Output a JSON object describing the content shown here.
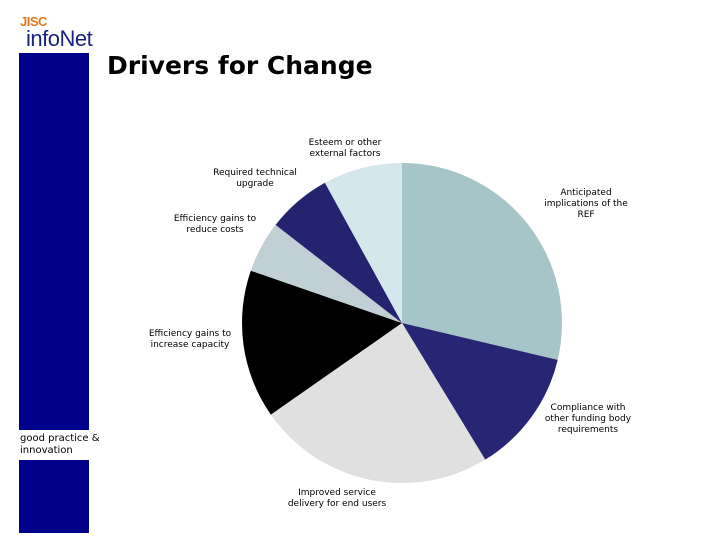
{
  "header": {
    "logo_top": "JISC",
    "logo_main": "infoNet",
    "title": "Drivers for Change"
  },
  "sidebar": {
    "label": [
      "good practice &",
      "innovation"
    ],
    "color": "#00008b"
  },
  "chart_data": {
    "type": "pie",
    "title": "Drivers for Change",
    "slices": [
      {
        "label": [
          "Anticipated",
          "implications of the",
          "REF"
        ],
        "value": 28.7,
        "color": "#a5c5c8"
      },
      {
        "label": [
          "Compliance with",
          "other funding body",
          "requirements"
        ],
        "value": 12.6,
        "color": "#262674"
      },
      {
        "label": [
          "Improved service",
          "delivery for end users"
        ],
        "value": 24.0,
        "color": "#e0e0e0"
      },
      {
        "label": [
          "Efficiency gains to",
          "increase capacity"
        ],
        "value": 15.0,
        "color": "#000000"
      },
      {
        "label": [
          "Efficiency gains to",
          "reduce costs"
        ],
        "value": 5.2,
        "color": "#c0d0d4"
      },
      {
        "label": [
          "Required technical",
          "upgrade"
        ],
        "value": 6.5,
        "color": "#232370"
      },
      {
        "label": [
          "Esteem or other",
          "external factors"
        ],
        "value": 8.0,
        "color": "#d4e8ec"
      }
    ]
  }
}
